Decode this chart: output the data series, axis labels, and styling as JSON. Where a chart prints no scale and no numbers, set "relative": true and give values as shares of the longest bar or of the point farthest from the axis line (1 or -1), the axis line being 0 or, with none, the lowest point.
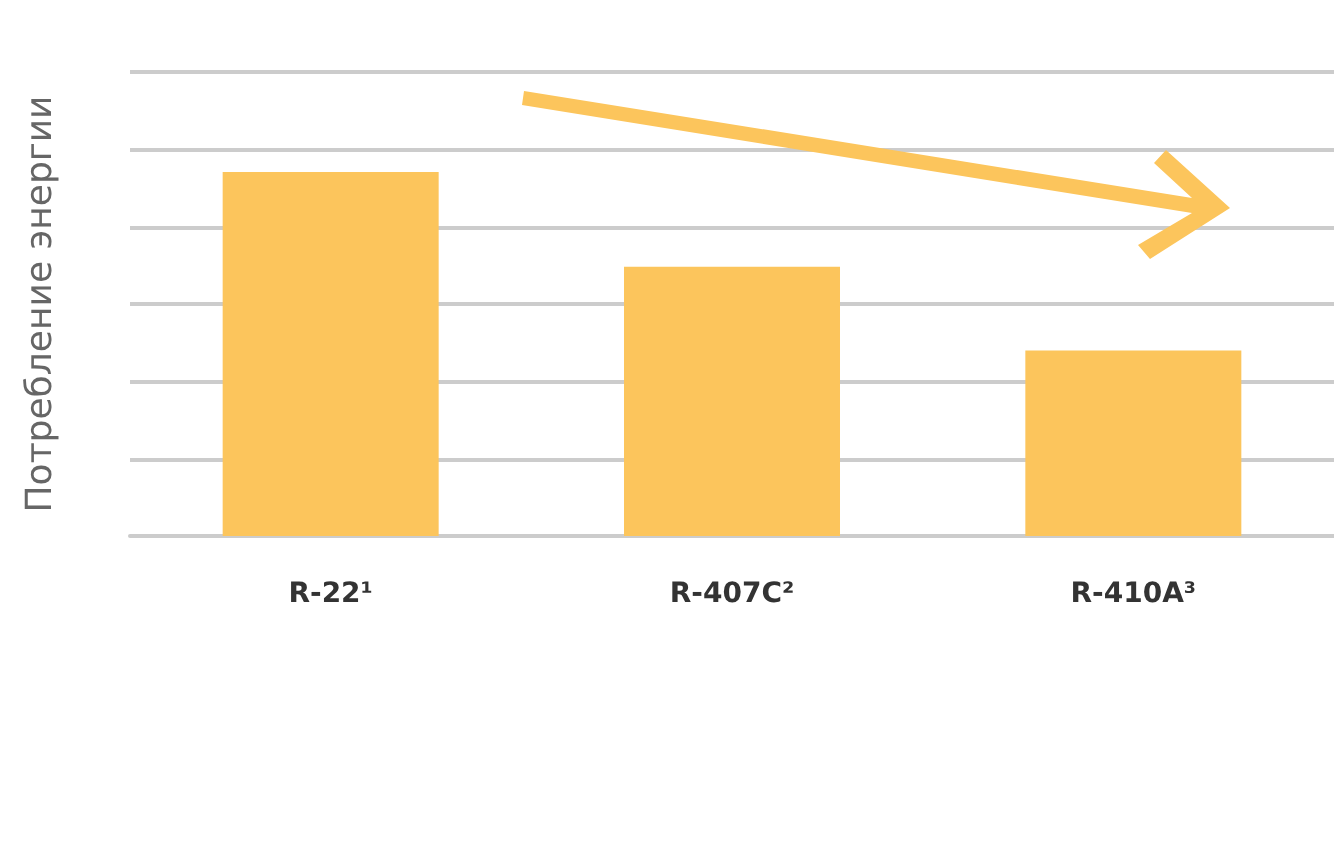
{
  "chart_data": {
    "type": "bar",
    "ylabel": "Потребление энергии",
    "categories": [
      "R-22¹",
      "R-407C²",
      "R-410A³"
    ],
    "values": [
      1,
      0.74,
      0.51
    ],
    "color": "#fcc55c",
    "relative": true,
    "grid": "y"
  }
}
